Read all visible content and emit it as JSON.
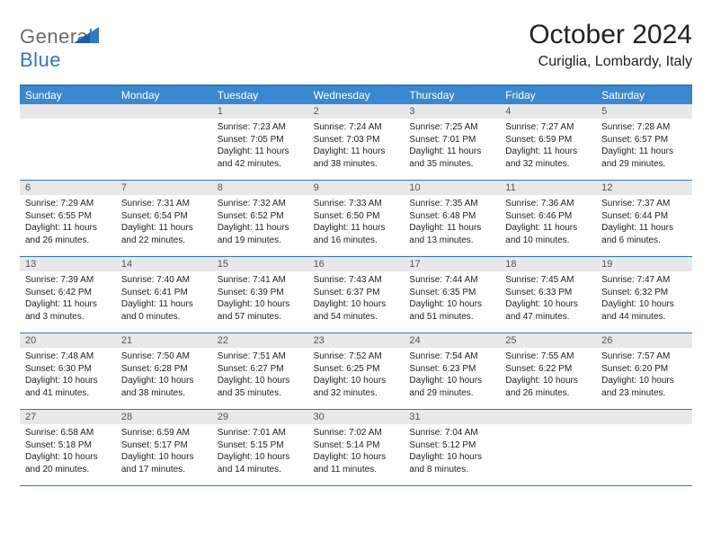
{
  "logo": {
    "general": "General",
    "blue": "Blue"
  },
  "title": "October 2024",
  "subtitle": "Curiglia, Lombardy, Italy",
  "colors": {
    "header_bg": "#3a88d0",
    "border": "#2f78c3",
    "daynum_bg": "#e8e8e8",
    "text": "#222222",
    "logo_gray": "#6b6b6b",
    "logo_blue": "#2f78c3",
    "background": "#ffffff"
  },
  "day_names": [
    "Sunday",
    "Monday",
    "Tuesday",
    "Wednesday",
    "Thursday",
    "Friday",
    "Saturday"
  ],
  "weeks": [
    [
      {
        "n": "",
        "l1": "",
        "l2": "",
        "l3": "",
        "l4": ""
      },
      {
        "n": "",
        "l1": "",
        "l2": "",
        "l3": "",
        "l4": ""
      },
      {
        "n": "1",
        "l1": "Sunrise: 7:23 AM",
        "l2": "Sunset: 7:05 PM",
        "l3": "Daylight: 11 hours",
        "l4": "and 42 minutes."
      },
      {
        "n": "2",
        "l1": "Sunrise: 7:24 AM",
        "l2": "Sunset: 7:03 PM",
        "l3": "Daylight: 11 hours",
        "l4": "and 38 minutes."
      },
      {
        "n": "3",
        "l1": "Sunrise: 7:25 AM",
        "l2": "Sunset: 7:01 PM",
        "l3": "Daylight: 11 hours",
        "l4": "and 35 minutes."
      },
      {
        "n": "4",
        "l1": "Sunrise: 7:27 AM",
        "l2": "Sunset: 6:59 PM",
        "l3": "Daylight: 11 hours",
        "l4": "and 32 minutes."
      },
      {
        "n": "5",
        "l1": "Sunrise: 7:28 AM",
        "l2": "Sunset: 6:57 PM",
        "l3": "Daylight: 11 hours",
        "l4": "and 29 minutes."
      }
    ],
    [
      {
        "n": "6",
        "l1": "Sunrise: 7:29 AM",
        "l2": "Sunset: 6:55 PM",
        "l3": "Daylight: 11 hours",
        "l4": "and 26 minutes."
      },
      {
        "n": "7",
        "l1": "Sunrise: 7:31 AM",
        "l2": "Sunset: 6:54 PM",
        "l3": "Daylight: 11 hours",
        "l4": "and 22 minutes."
      },
      {
        "n": "8",
        "l1": "Sunrise: 7:32 AM",
        "l2": "Sunset: 6:52 PM",
        "l3": "Daylight: 11 hours",
        "l4": "and 19 minutes."
      },
      {
        "n": "9",
        "l1": "Sunrise: 7:33 AM",
        "l2": "Sunset: 6:50 PM",
        "l3": "Daylight: 11 hours",
        "l4": "and 16 minutes."
      },
      {
        "n": "10",
        "l1": "Sunrise: 7:35 AM",
        "l2": "Sunset: 6:48 PM",
        "l3": "Daylight: 11 hours",
        "l4": "and 13 minutes."
      },
      {
        "n": "11",
        "l1": "Sunrise: 7:36 AM",
        "l2": "Sunset: 6:46 PM",
        "l3": "Daylight: 11 hours",
        "l4": "and 10 minutes."
      },
      {
        "n": "12",
        "l1": "Sunrise: 7:37 AM",
        "l2": "Sunset: 6:44 PM",
        "l3": "Daylight: 11 hours",
        "l4": "and 6 minutes."
      }
    ],
    [
      {
        "n": "13",
        "l1": "Sunrise: 7:39 AM",
        "l2": "Sunset: 6:42 PM",
        "l3": "Daylight: 11 hours",
        "l4": "and 3 minutes."
      },
      {
        "n": "14",
        "l1": "Sunrise: 7:40 AM",
        "l2": "Sunset: 6:41 PM",
        "l3": "Daylight: 11 hours",
        "l4": "and 0 minutes."
      },
      {
        "n": "15",
        "l1": "Sunrise: 7:41 AM",
        "l2": "Sunset: 6:39 PM",
        "l3": "Daylight: 10 hours",
        "l4": "and 57 minutes."
      },
      {
        "n": "16",
        "l1": "Sunrise: 7:43 AM",
        "l2": "Sunset: 6:37 PM",
        "l3": "Daylight: 10 hours",
        "l4": "and 54 minutes."
      },
      {
        "n": "17",
        "l1": "Sunrise: 7:44 AM",
        "l2": "Sunset: 6:35 PM",
        "l3": "Daylight: 10 hours",
        "l4": "and 51 minutes."
      },
      {
        "n": "18",
        "l1": "Sunrise: 7:45 AM",
        "l2": "Sunset: 6:33 PM",
        "l3": "Daylight: 10 hours",
        "l4": "and 47 minutes."
      },
      {
        "n": "19",
        "l1": "Sunrise: 7:47 AM",
        "l2": "Sunset: 6:32 PM",
        "l3": "Daylight: 10 hours",
        "l4": "and 44 minutes."
      }
    ],
    [
      {
        "n": "20",
        "l1": "Sunrise: 7:48 AM",
        "l2": "Sunset: 6:30 PM",
        "l3": "Daylight: 10 hours",
        "l4": "and 41 minutes."
      },
      {
        "n": "21",
        "l1": "Sunrise: 7:50 AM",
        "l2": "Sunset: 6:28 PM",
        "l3": "Daylight: 10 hours",
        "l4": "and 38 minutes."
      },
      {
        "n": "22",
        "l1": "Sunrise: 7:51 AM",
        "l2": "Sunset: 6:27 PM",
        "l3": "Daylight: 10 hours",
        "l4": "and 35 minutes."
      },
      {
        "n": "23",
        "l1": "Sunrise: 7:52 AM",
        "l2": "Sunset: 6:25 PM",
        "l3": "Daylight: 10 hours",
        "l4": "and 32 minutes."
      },
      {
        "n": "24",
        "l1": "Sunrise: 7:54 AM",
        "l2": "Sunset: 6:23 PM",
        "l3": "Daylight: 10 hours",
        "l4": "and 29 minutes."
      },
      {
        "n": "25",
        "l1": "Sunrise: 7:55 AM",
        "l2": "Sunset: 6:22 PM",
        "l3": "Daylight: 10 hours",
        "l4": "and 26 minutes."
      },
      {
        "n": "26",
        "l1": "Sunrise: 7:57 AM",
        "l2": "Sunset: 6:20 PM",
        "l3": "Daylight: 10 hours",
        "l4": "and 23 minutes."
      }
    ],
    [
      {
        "n": "27",
        "l1": "Sunrise: 6:58 AM",
        "l2": "Sunset: 5:18 PM",
        "l3": "Daylight: 10 hours",
        "l4": "and 20 minutes."
      },
      {
        "n": "28",
        "l1": "Sunrise: 6:59 AM",
        "l2": "Sunset: 5:17 PM",
        "l3": "Daylight: 10 hours",
        "l4": "and 17 minutes."
      },
      {
        "n": "29",
        "l1": "Sunrise: 7:01 AM",
        "l2": "Sunset: 5:15 PM",
        "l3": "Daylight: 10 hours",
        "l4": "and 14 minutes."
      },
      {
        "n": "30",
        "l1": "Sunrise: 7:02 AM",
        "l2": "Sunset: 5:14 PM",
        "l3": "Daylight: 10 hours",
        "l4": "and 11 minutes."
      },
      {
        "n": "31",
        "l1": "Sunrise: 7:04 AM",
        "l2": "Sunset: 5:12 PM",
        "l3": "Daylight: 10 hours",
        "l4": "and 8 minutes."
      },
      {
        "n": "",
        "l1": "",
        "l2": "",
        "l3": "",
        "l4": ""
      },
      {
        "n": "",
        "l1": "",
        "l2": "",
        "l3": "",
        "l4": ""
      }
    ]
  ]
}
